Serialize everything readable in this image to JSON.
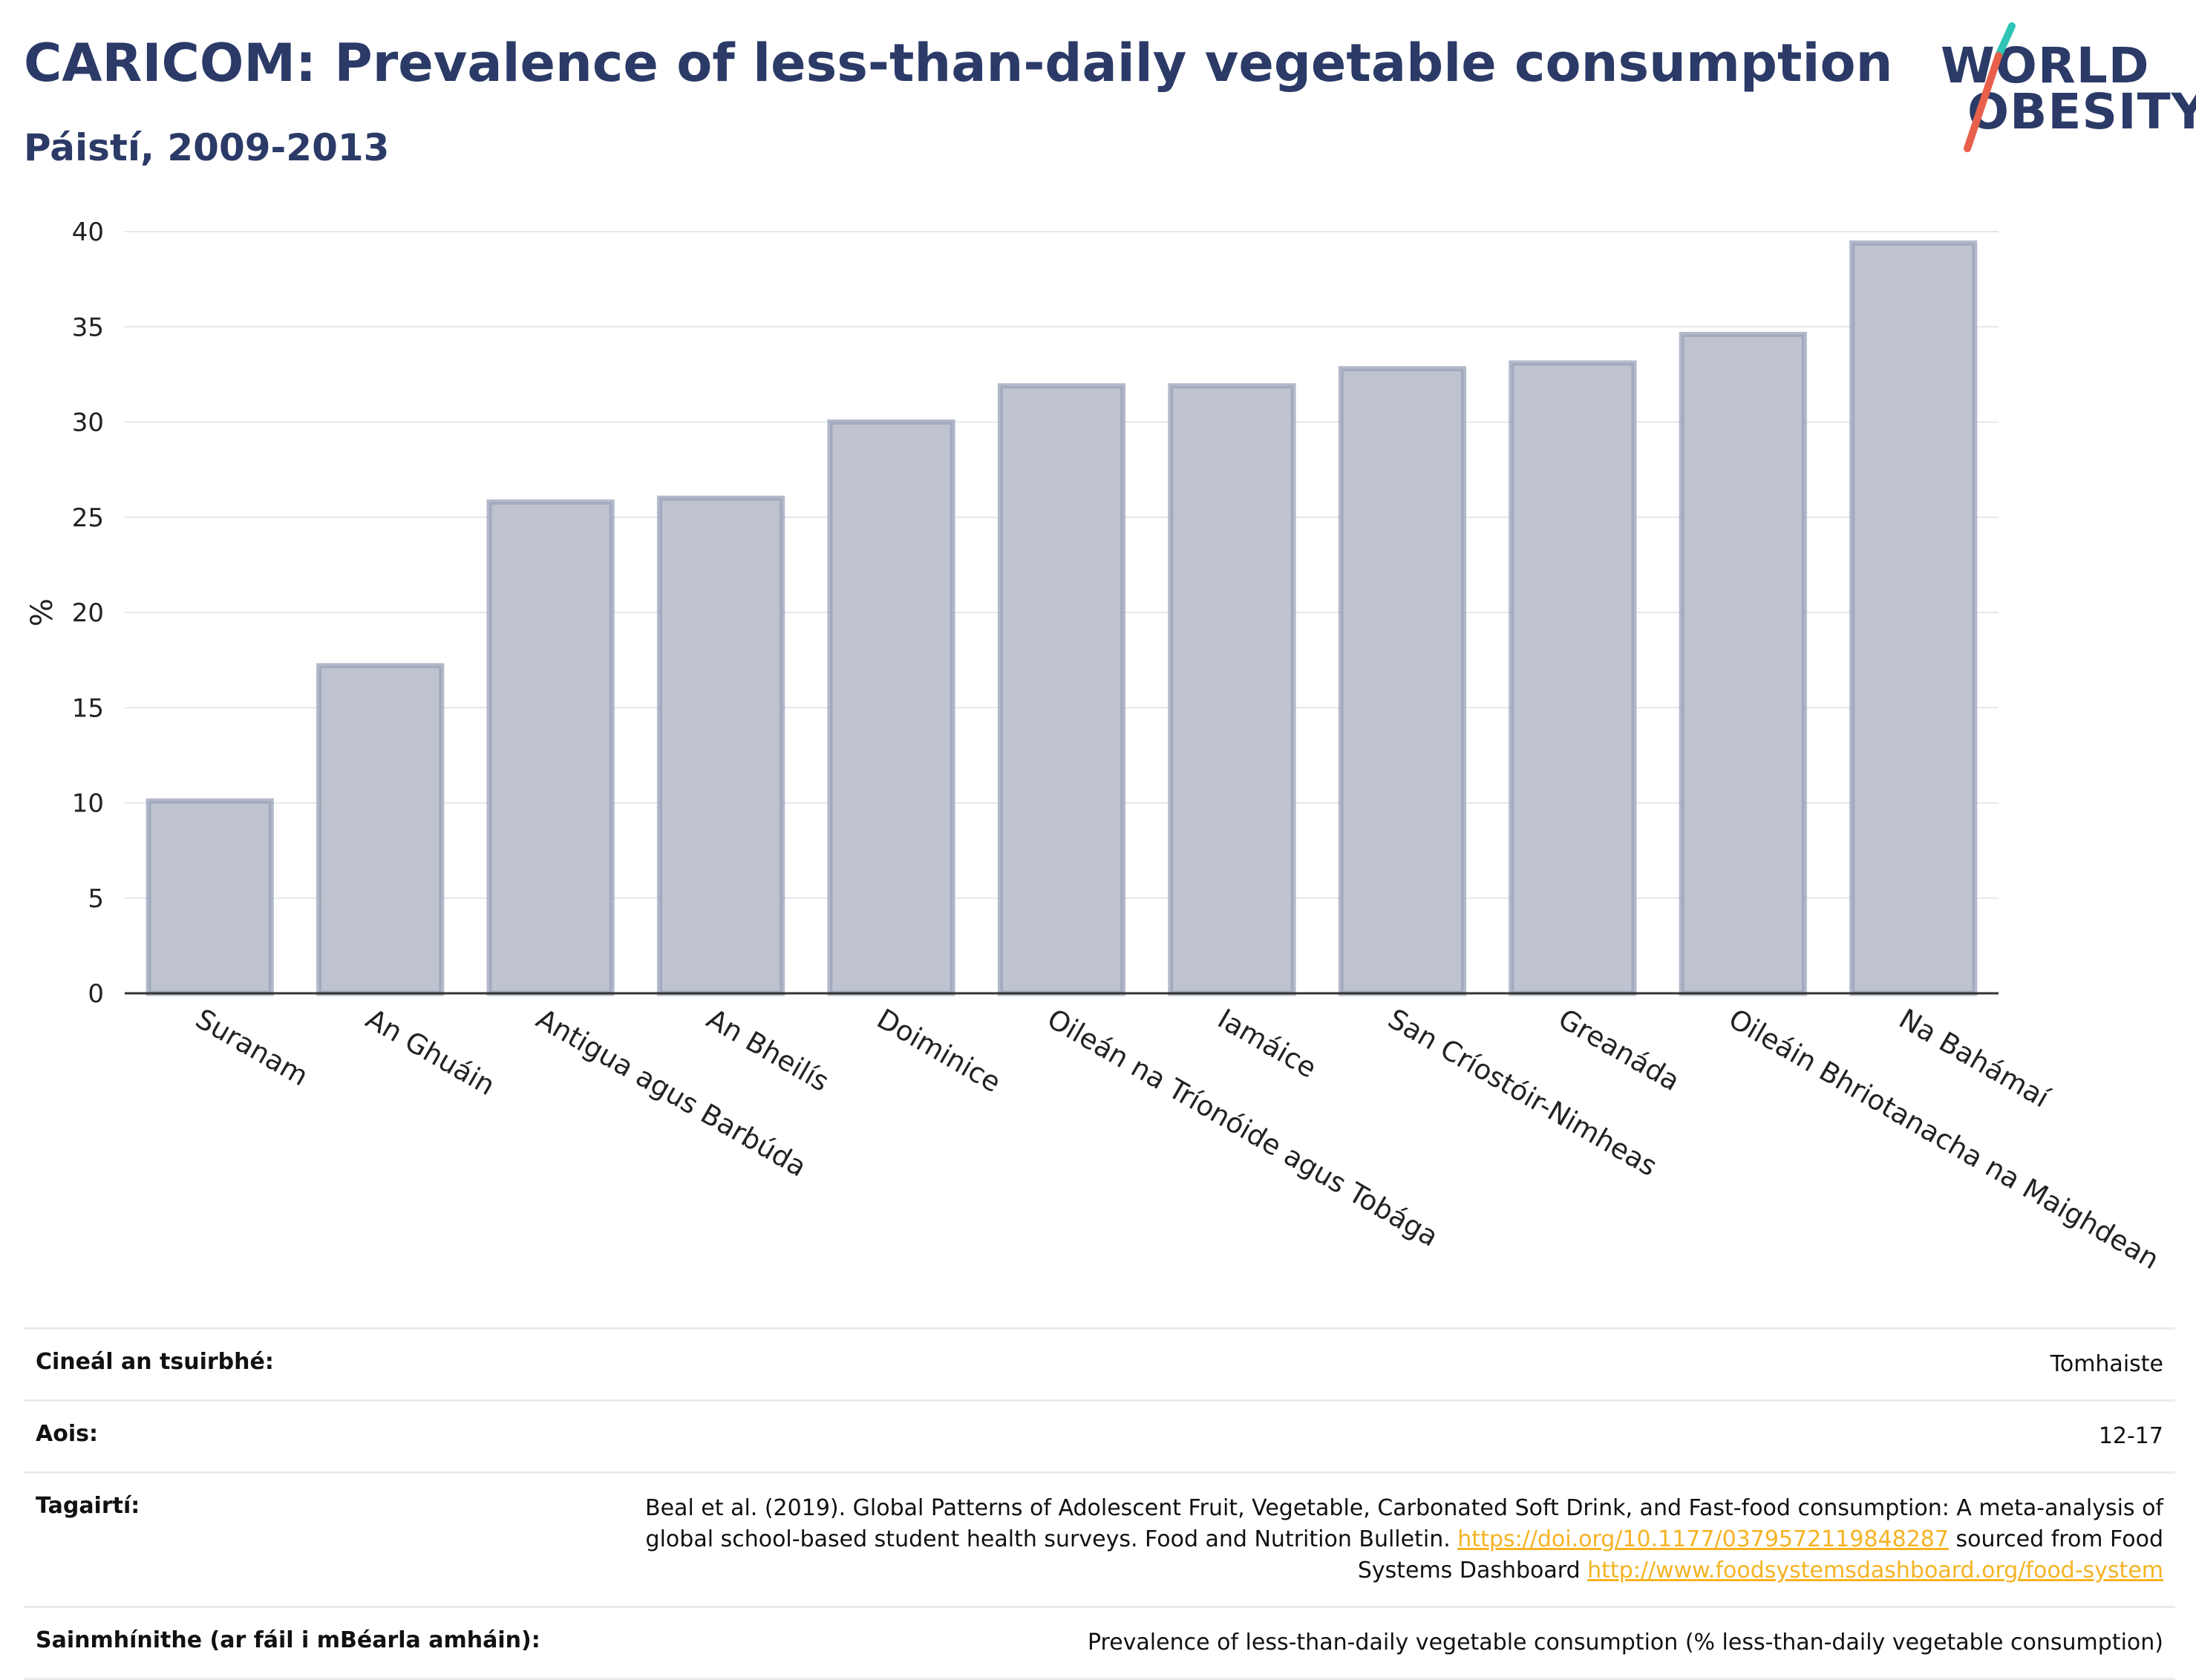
{
  "header": {
    "title": "CARICOM: Prevalence of less-than-daily vegetable consumption",
    "subtitle": "Páistí, 2009-2013"
  },
  "logo": {
    "line1": "WORLD",
    "line2": "OBESITY",
    "colors": {
      "text": "#2b3a67",
      "slash_top": "#2ec4b6",
      "slash_bottom": "#e8604c"
    }
  },
  "chart_data": {
    "type": "bar",
    "ylabel": "%",
    "ylim": [
      0,
      40
    ],
    "yticks": [
      0,
      5,
      10,
      15,
      20,
      25,
      30,
      35,
      40
    ],
    "grid": true,
    "categories": [
      "Suranam",
      "An Ghuáin",
      "Antigua agus Barbúda",
      "An Bheilís",
      "Doiminice",
      "Oileán na Tríonóide agus Tobága",
      "Iamáice",
      "San Críostóir-Nimheas",
      "Greanáda",
      "Oileáin Bhriotanacha na Maighdean",
      "Na Bahámaí"
    ],
    "values": [
      10.1,
      17.2,
      25.8,
      26.0,
      30.0,
      31.9,
      31.9,
      32.8,
      33.1,
      34.6,
      39.4
    ],
    "colors": {
      "bar_fill": "#bfc3d0",
      "bar_stroke": "#9aa1b8",
      "grid": "#e6e7eb",
      "axis": "#333333"
    }
  },
  "info": {
    "rows": [
      {
        "label": "Cineál an tsuirbhé:",
        "value": "Tomhaiste"
      },
      {
        "label": "Aois:",
        "value": "12-17"
      },
      {
        "label": "Tagairtí:",
        "value_parts": {
          "text1": "Beal et al. (2019). Global Patterns of Adolescent Fruit, Vegetable, Carbonated Soft Drink, and Fast-food consumption: A meta-analysis of global school-based student health surveys. Food and Nutrition Bulletin. ",
          "link1": "https://doi.org/10.1177/0379572119848287",
          "text2": " sourced from Food Systems Dashboard ",
          "link2": "http://www.foodsystemsdashboard.org/food-system"
        }
      },
      {
        "label": "Sainmhínithe (ar fáil i mBéarla amháin):",
        "value": "Prevalence of less-than-daily vegetable consumption (% less-than-daily vegetable consumption)"
      }
    ],
    "link_color": "#f5b324"
  }
}
